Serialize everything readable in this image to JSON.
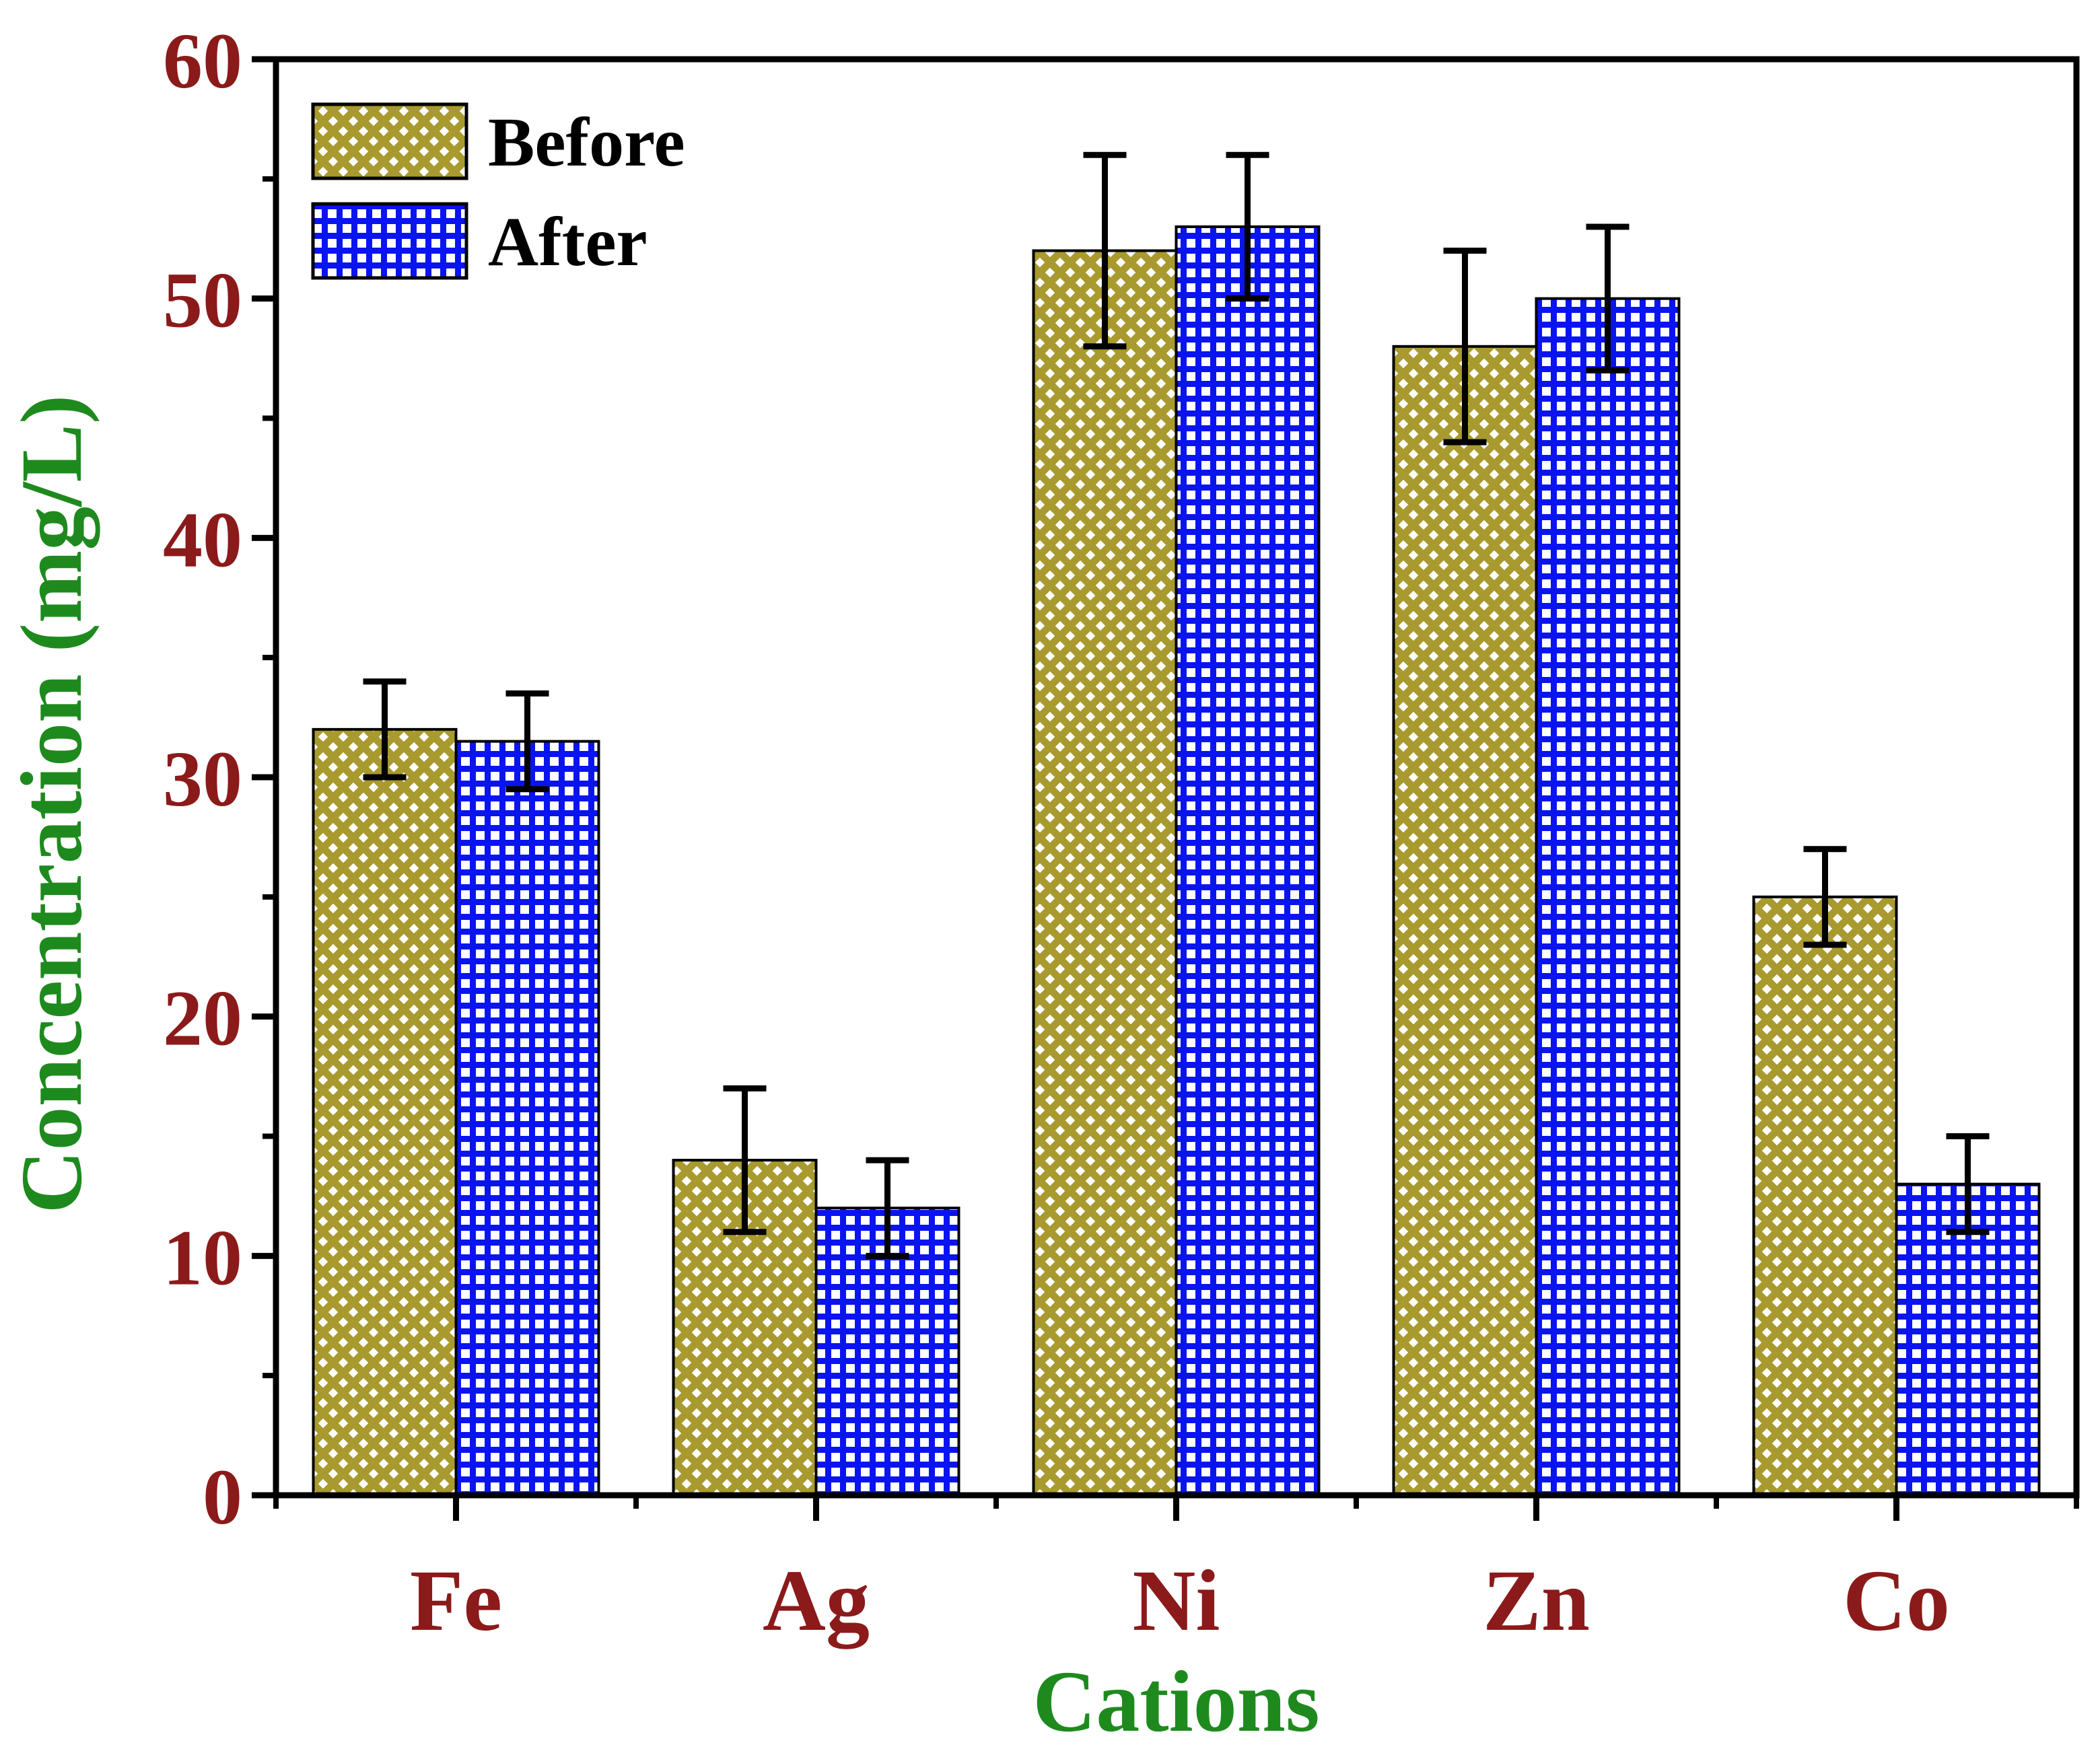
{
  "chart_data": {
    "type": "bar",
    "title": "",
    "xlabel": "Cations",
    "ylabel": "Concentration (mg/L)",
    "ylim": [
      0,
      60
    ],
    "yticks": [
      0,
      10,
      20,
      30,
      40,
      50,
      60
    ],
    "categories": [
      "Fe",
      "Ag",
      "Ni",
      "Zn",
      "Co"
    ],
    "series": [
      {
        "name": "Before",
        "values": [
          32,
          14,
          52,
          48,
          25
        ],
        "errors": [
          2,
          3,
          4,
          4,
          2
        ],
        "pattern": "crosshatch",
        "color": "#a89a2e"
      },
      {
        "name": "After",
        "values": [
          31.5,
          12,
          53,
          50,
          13
        ],
        "errors": [
          2,
          2,
          3,
          3,
          2
        ],
        "pattern": "grid",
        "color": "#0a14f0"
      }
    ],
    "legend_position": "top-left",
    "grid": false
  }
}
